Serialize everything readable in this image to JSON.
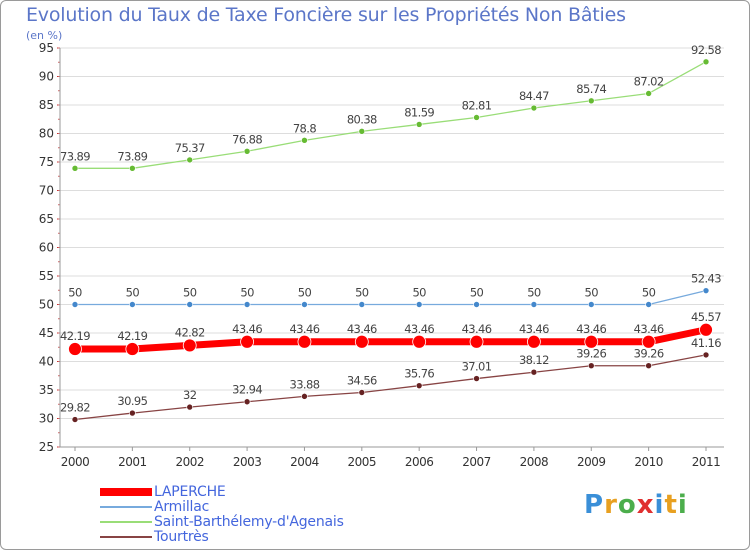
{
  "title": "Evolution du Taux de Taxe Foncière sur les Propriétés Non Bâties",
  "subtitle": "(en %)",
  "logo": [
    "P",
    "r",
    "o",
    "x",
    "i",
    "t",
    "i"
  ],
  "logo_colors": [
    "#3a8fd8",
    "#e8a020",
    "#4cae4c",
    "#e03030",
    "#3a8fd8",
    "#e8a020",
    "#4cae4c"
  ],
  "colors": {
    "axis": "#999999",
    "grid": "#dddddd",
    "tick_text": "#333333",
    "label_text": "#444444"
  },
  "chart_data": {
    "type": "line",
    "title": "Evolution du Taux de Taxe Foncière sur les Propriétés Non Bâties",
    "ylabel": "(en %)",
    "xlabel": "",
    "x": [
      "2000",
      "2001",
      "2002",
      "2003",
      "2004",
      "2005",
      "2006",
      "2007",
      "2008",
      "2009",
      "2010",
      "2011"
    ],
    "ylim": [
      25,
      95
    ],
    "yticks": [
      25,
      30,
      35,
      40,
      45,
      50,
      55,
      60,
      65,
      70,
      75,
      80,
      85,
      90,
      95
    ],
    "grid": "horizontal",
    "legend_position": "bottom-left",
    "series": [
      {
        "name": "LAPERCHE",
        "color": "#ff0000",
        "marker_color": "#ff0000",
        "values": [
          42.19,
          42.19,
          42.82,
          43.46,
          43.46,
          43.46,
          43.46,
          43.46,
          43.46,
          43.46,
          43.46,
          45.57
        ],
        "labels": [
          "42.19",
          "42.19",
          "42.82",
          "43.46",
          "43.46",
          "43.46",
          "43.46",
          "43.46",
          "43.46",
          "43.46",
          "43.46",
          "45.57"
        ]
      },
      {
        "name": "Armillac",
        "color": "#77aadd",
        "marker_color": "#4488cc",
        "values": [
          50,
          50,
          50,
          50,
          50,
          50,
          50,
          50,
          50,
          50,
          50,
          52.43
        ],
        "labels": [
          "50",
          "50",
          "50",
          "50",
          "50",
          "50",
          "50",
          "50",
          "50",
          "50",
          "50",
          "52.43"
        ]
      },
      {
        "name": "Saint-Barthélemy-d'Agenais",
        "color": "#99dd77",
        "marker_color": "#66bb33",
        "values": [
          73.89,
          73.89,
          75.37,
          76.88,
          78.8,
          80.38,
          81.59,
          82.81,
          84.47,
          85.74,
          87.02,
          92.58
        ],
        "labels": [
          "73.89",
          "73.89",
          "75.37",
          "76.88",
          "78.8",
          "80.38",
          "81.59",
          "82.81",
          "84.47",
          "85.74",
          "87.02",
          "92.58"
        ]
      },
      {
        "name": "Tourtrès",
        "color": "#884444",
        "marker_color": "#662222",
        "values": [
          29.82,
          30.95,
          32,
          32.94,
          33.88,
          34.56,
          35.76,
          37.01,
          38.12,
          39.26,
          39.26,
          41.16
        ],
        "labels": [
          "29.82",
          "30.95",
          "32",
          "32.94",
          "33.88",
          "34.56",
          "35.76",
          "37.01",
          "38.12",
          "39.26",
          "39.26",
          "41.16"
        ]
      }
    ]
  }
}
